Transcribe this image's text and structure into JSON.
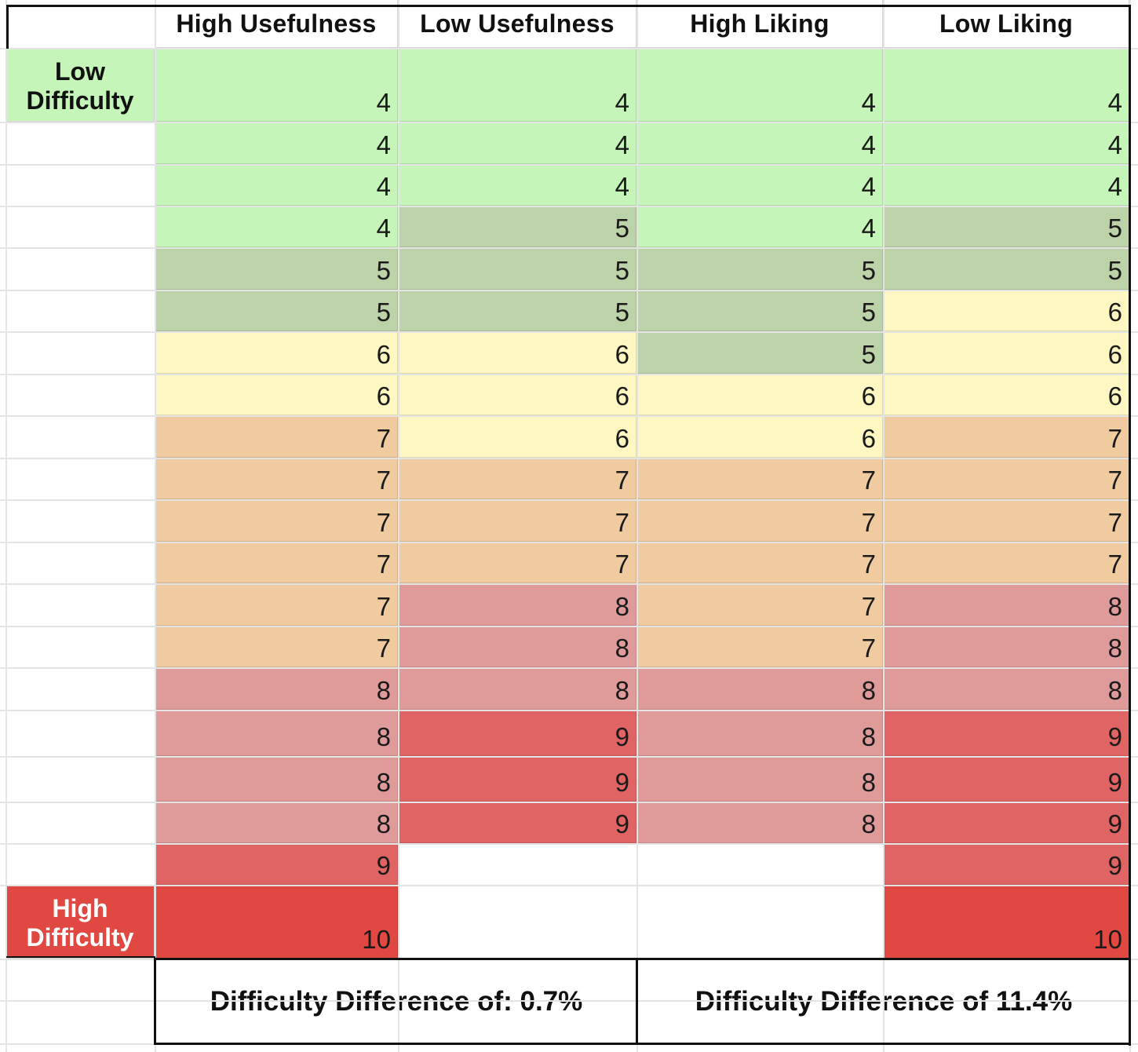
{
  "colors": {
    "4": "#c5f5b8",
    "5": "#bcd3a9",
    "6": "#fff7c2",
    "7": "#f0cb9f",
    "8": "#de9b9a",
    "9": "#e06464",
    "10": "#e04841"
  },
  "headers": [
    "High Usefulness",
    "Low Usefulness",
    "High Liking",
    "Low Liking"
  ],
  "side_labels": {
    "low": [
      "Low",
      "Difficulty"
    ],
    "high": [
      "High",
      "Difficulty"
    ]
  },
  "columns": [
    [
      4,
      4,
      4,
      4,
      5,
      5,
      6,
      6,
      7,
      7,
      7,
      7,
      7,
      7,
      8,
      8,
      8,
      8,
      9,
      10
    ],
    [
      4,
      4,
      4,
      5,
      5,
      5,
      6,
      6,
      6,
      7,
      7,
      7,
      8,
      8,
      8,
      9,
      9,
      9
    ],
    [
      4,
      4,
      4,
      4,
      5,
      5,
      5,
      6,
      6,
      7,
      7,
      7,
      7,
      7,
      8,
      8,
      8,
      8
    ],
    [
      4,
      4,
      4,
      5,
      5,
      6,
      6,
      6,
      7,
      7,
      7,
      7,
      8,
      8,
      8,
      9,
      9,
      9,
      9,
      10
    ]
  ],
  "footer": {
    "left": "Difficulty Difference of: 0.7%",
    "right": "Difficulty Difference of 11.4%"
  }
}
